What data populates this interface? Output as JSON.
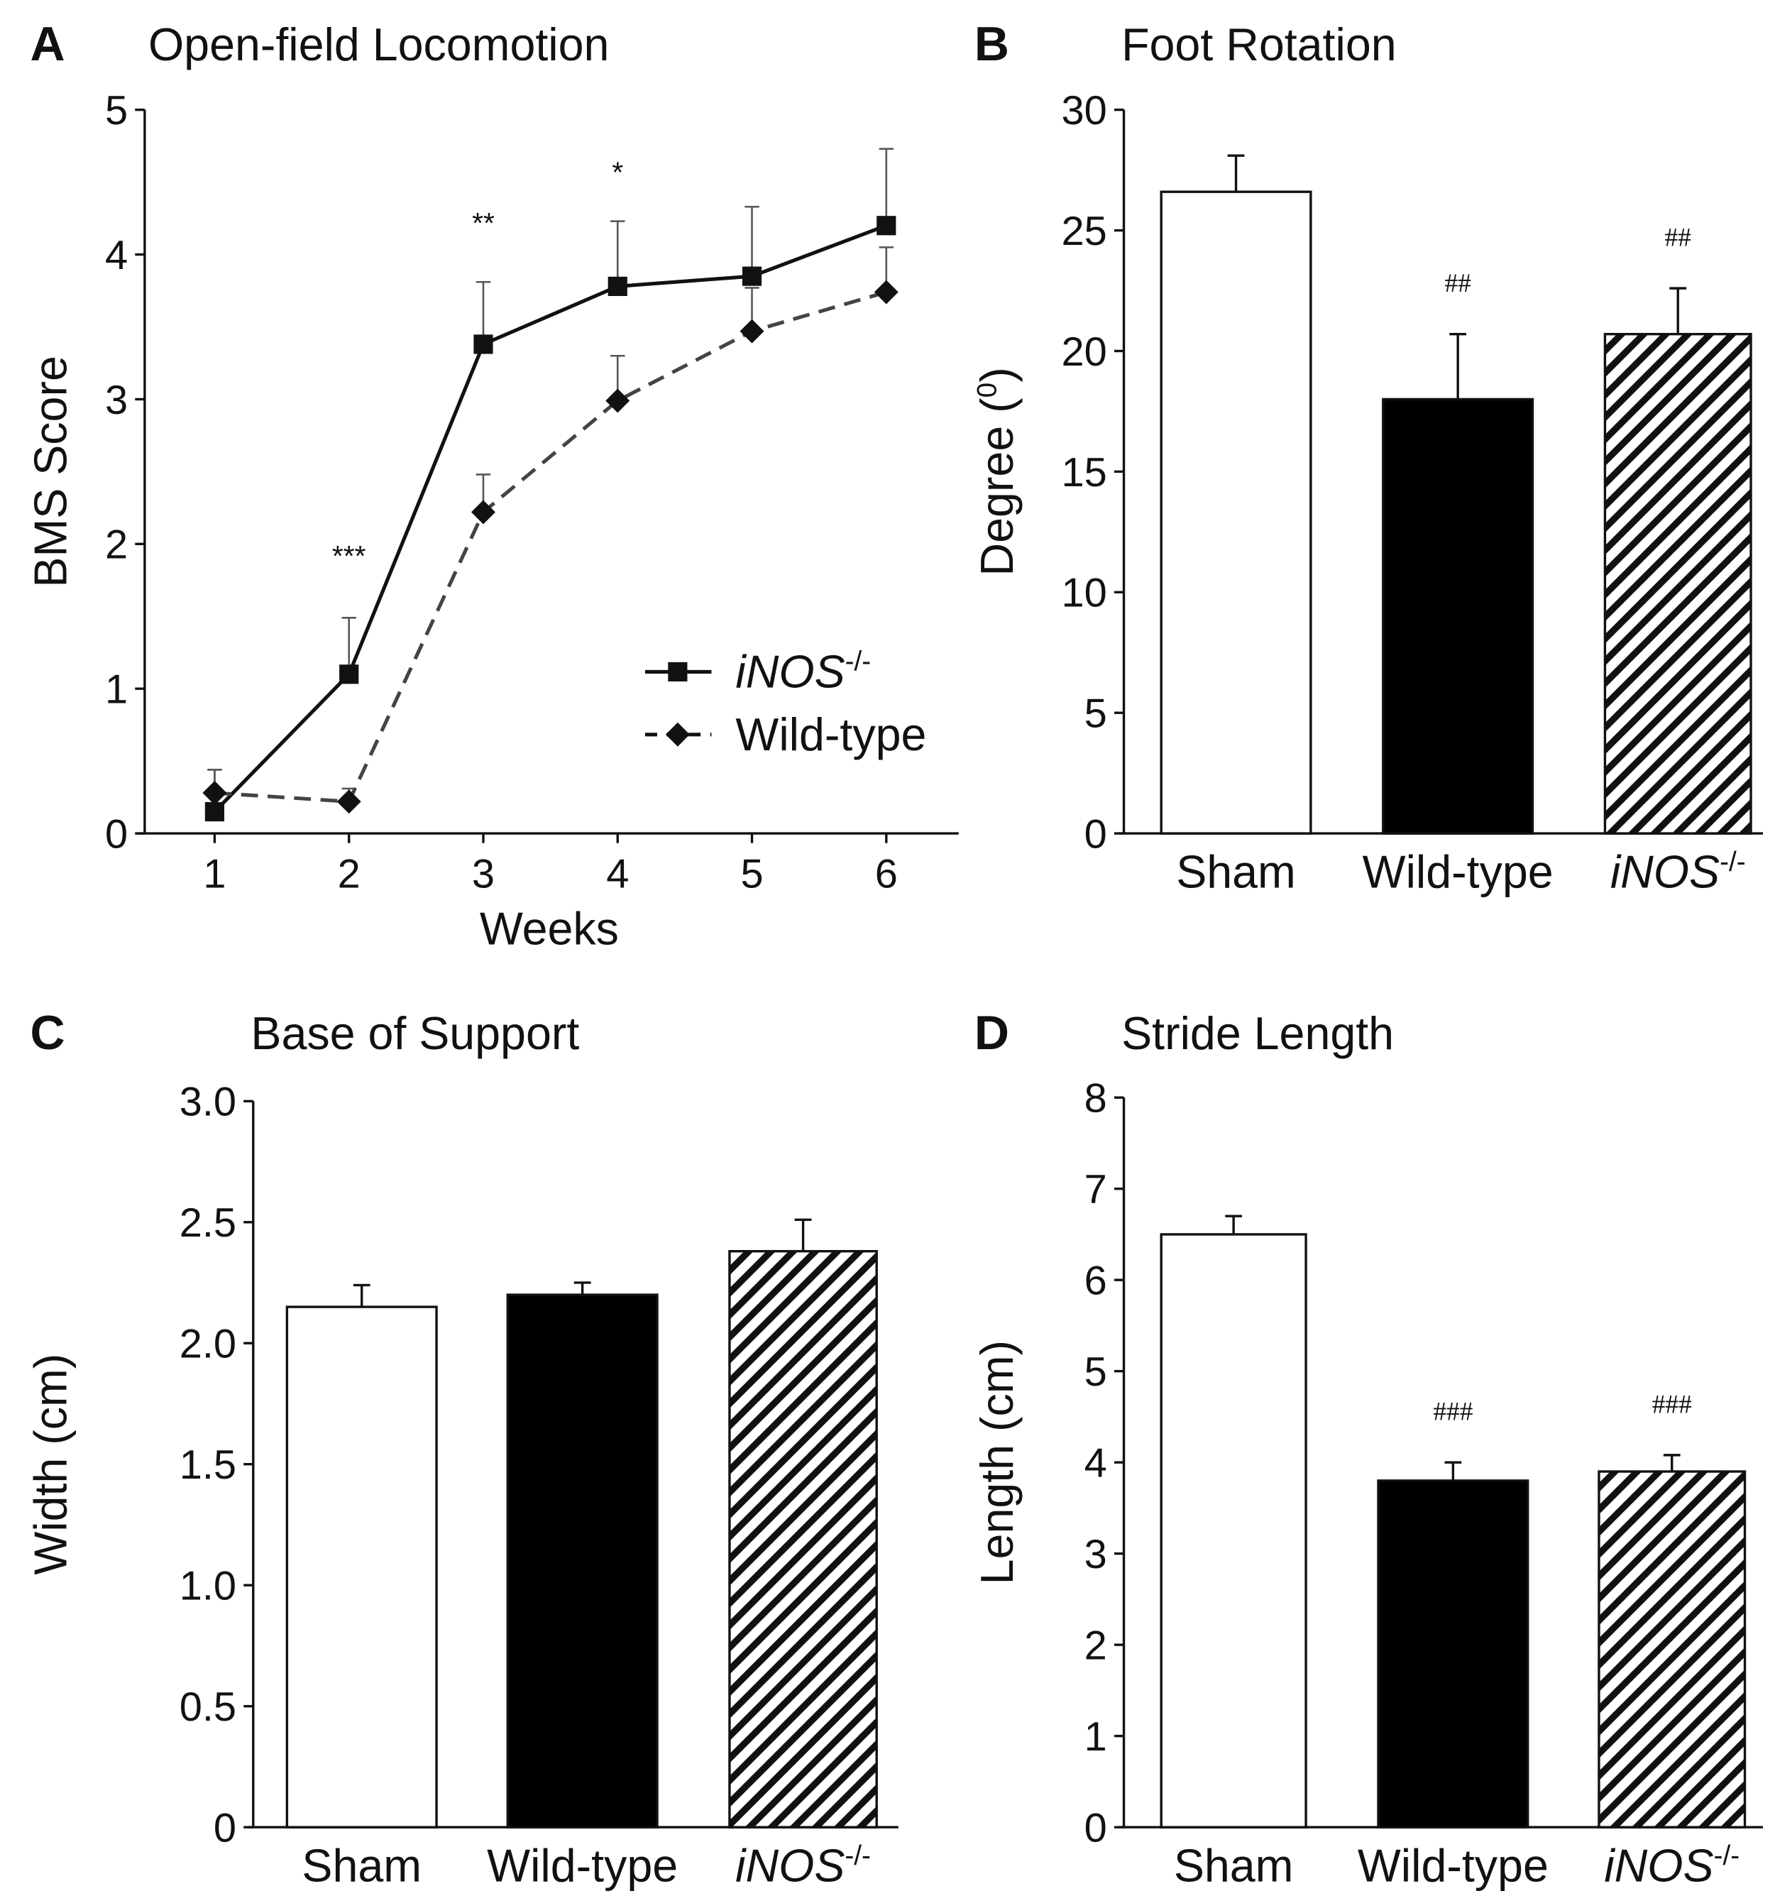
{
  "chart_data": [
    {
      "panel": "A",
      "type": "line",
      "title": "Open-field Locomotion",
      "xlabel": "Weeks",
      "ylabel": "BMS Score",
      "x": [
        1,
        2,
        3,
        4,
        5,
        6
      ],
      "ylim": [
        0,
        5
      ],
      "yticks": [
        0,
        1,
        2,
        3,
        4,
        5
      ],
      "legend": "right",
      "series": [
        {
          "name": "iNOS",
          "name_sup": "-/-",
          "marker": "square",
          "style": "solid",
          "values": [
            0.15,
            1.1,
            3.38,
            3.78,
            3.85,
            4.2
          ],
          "err_upper": [
            0.44,
            1.49,
            3.81,
            4.23,
            4.33,
            4.73
          ]
        },
        {
          "name": "Wild-type",
          "marker": "diamond",
          "style": "dashed",
          "values": [
            0.28,
            0.22,
            2.22,
            2.99,
            3.47,
            3.74
          ],
          "err_upper": [
            0.44,
            0.31,
            2.48,
            3.3,
            3.77,
            4.05
          ]
        }
      ],
      "annotations": [
        {
          "x": 2,
          "y": 1.85,
          "text": "***"
        },
        {
          "x": 3,
          "y": 4.15,
          "text": "**"
        },
        {
          "x": 4,
          "y": 4.5,
          "text": "*"
        }
      ]
    },
    {
      "panel": "B",
      "type": "bar",
      "title": "Foot Rotation",
      "ylabel": "Degree (",
      "ylabel_sup": "0",
      "ylabel_end": ")",
      "ylim": [
        0,
        30
      ],
      "yticks": [
        0,
        5,
        10,
        15,
        20,
        25,
        30
      ],
      "categories": [
        "Sham",
        "Wild-type",
        "iNOS"
      ],
      "category_sup": [
        "",
        "",
        "-/-"
      ],
      "values": [
        26.6,
        18.0,
        20.7
      ],
      "err_upper": [
        28.1,
        20.7,
        22.6
      ],
      "annotations": [
        "",
        "##",
        "##"
      ]
    },
    {
      "panel": "C",
      "type": "bar",
      "title": "Base of Support",
      "ylabel": "Width (cm)",
      "ylim": [
        0,
        3
      ],
      "yticks": [
        "0",
        "0.5",
        "1.0",
        "1.5",
        "2.0",
        "2.5",
        "3.0"
      ],
      "categories": [
        "Sham",
        "Wild-type",
        "iNOS"
      ],
      "category_sup": [
        "",
        "",
        "-/-"
      ],
      "values": [
        2.15,
        2.2,
        2.38
      ],
      "err_upper": [
        2.24,
        2.25,
        2.51
      ],
      "annotations": [
        "",
        "",
        ""
      ]
    },
    {
      "panel": "D",
      "type": "bar",
      "title": "Stride Length",
      "ylabel": "Length (cm)",
      "ylim": [
        0,
        8
      ],
      "yticks": [
        0,
        1,
        2,
        3,
        4,
        5,
        6,
        7,
        8
      ],
      "categories": [
        "Sham",
        "Wild-type",
        "iNOS"
      ],
      "category_sup": [
        "",
        "",
        "-/-"
      ],
      "values": [
        6.5,
        3.8,
        3.9
      ],
      "err_upper": [
        6.7,
        4.0,
        4.08
      ],
      "annotations": [
        "",
        "###",
        "###"
      ]
    }
  ],
  "colors": {
    "ink": "#111111",
    "bar_sham": "#ffffff",
    "bar_wt": "#000000"
  }
}
